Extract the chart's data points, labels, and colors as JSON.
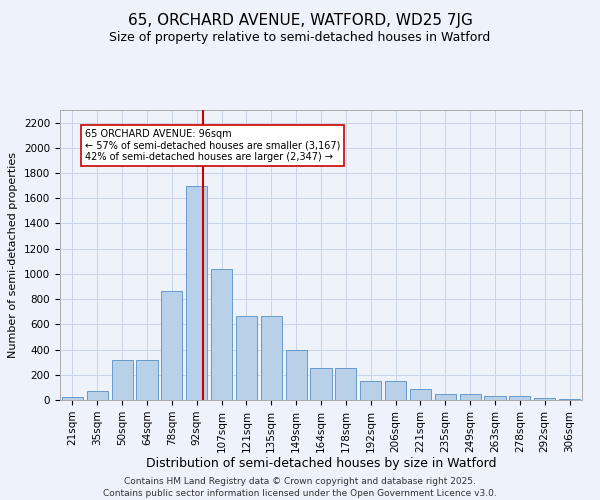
{
  "title_line1": "65, ORCHARD AVENUE, WATFORD, WD25 7JG",
  "title_line2": "Size of property relative to semi-detached houses in Watford",
  "xlabel": "Distribution of semi-detached houses by size in Watford",
  "ylabel": "Number of semi-detached properties",
  "bins": [
    "21sqm",
    "35sqm",
    "50sqm",
    "64sqm",
    "78sqm",
    "92sqm",
    "107sqm",
    "121sqm",
    "135sqm",
    "149sqm",
    "164sqm",
    "178sqm",
    "192sqm",
    "206sqm",
    "221sqm",
    "235sqm",
    "249sqm",
    "263sqm",
    "278sqm",
    "292sqm",
    "306sqm"
  ],
  "values": [
    25,
    75,
    315,
    315,
    865,
    1700,
    1040,
    670,
    670,
    395,
    250,
    250,
    150,
    150,
    85,
    50,
    45,
    35,
    30,
    15,
    10
  ],
  "bar_color": "#b8d0e8",
  "bar_edge_color": "#6699cc",
  "grid_color": "#c8d4e8",
  "background_color": "#eef2fa",
  "vline_color": "#cc0000",
  "annotation_text": "65 ORCHARD AVENUE: 96sqm\n← 57% of semi-detached houses are smaller (3,167)\n42% of semi-detached houses are larger (2,347) →",
  "annotation_box_color": "#ffffff",
  "annotation_box_edge": "#cc0000",
  "ylim": [
    0,
    2300
  ],
  "yticks": [
    0,
    200,
    400,
    600,
    800,
    1000,
    1200,
    1400,
    1600,
    1800,
    2000,
    2200
  ],
  "footer": "Contains HM Land Registry data © Crown copyright and database right 2025.\nContains public sector information licensed under the Open Government Licence v3.0.",
  "title1_fontsize": 11,
  "title2_fontsize": 9,
  "xlabel_fontsize": 9,
  "ylabel_fontsize": 8,
  "tick_fontsize": 7.5,
  "footer_fontsize": 6.5,
  "annot_fontsize": 7
}
